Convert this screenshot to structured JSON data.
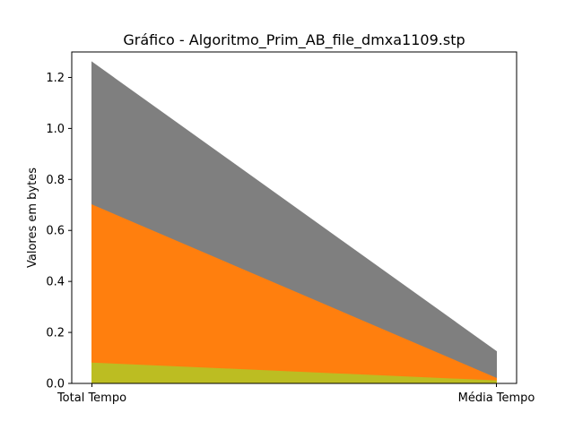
{
  "chart_data": {
    "type": "area",
    "title": "Gráfico - Algoritmo_Prim_AB_file_dmxa1109.stp",
    "xlabel": "",
    "ylabel": "Valores em bytes",
    "categories": [
      "Total Tempo",
      "Média Tempo"
    ],
    "ylim": [
      0,
      1.3
    ],
    "yticks": [
      "0.0",
      "0.2",
      "0.4",
      "0.6",
      "0.8",
      "1.0",
      "1.2"
    ],
    "grid": false,
    "series": [
      {
        "values": [
          1.26,
          0.125
        ],
        "color": "#7f7f7f"
      },
      {
        "values": [
          0.7,
          0.02
        ],
        "color": "#ff7f0e"
      },
      {
        "values": [
          0.08,
          0.01
        ],
        "color": "#bcbd22"
      }
    ]
  }
}
